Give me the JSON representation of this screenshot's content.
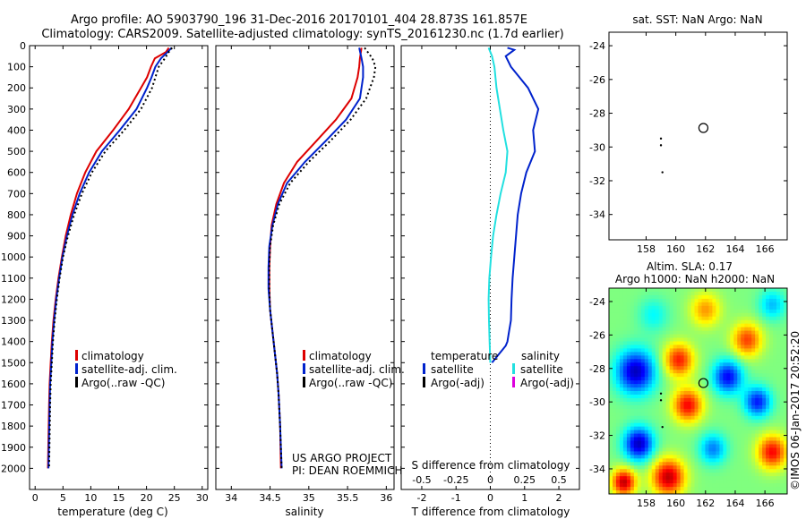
{
  "header": {
    "line1": "Argo profile: AO 5903790_196 31-Dec-2016 20170101_404 28.873S 161.857E",
    "line2": "Climatology: CARS2009. Satellite-adjusted climatology: synTS_20161230.nc (1.7d earlier)"
  },
  "colors": {
    "climatology": "#dd0000",
    "satellite": "#0022cc",
    "argo": "#000000",
    "sat_salinity": "#22e0e0",
    "argo_adj_salinity": "#dd00dd"
  },
  "depth_axis": {
    "lim": [
      0,
      2100
    ],
    "ticks": [
      0,
      100,
      200,
      300,
      400,
      500,
      600,
      700,
      800,
      900,
      1000,
      1100,
      1200,
      1300,
      1400,
      1500,
      1600,
      1700,
      1800,
      1900,
      2000
    ]
  },
  "chart_data": [
    {
      "type": "line",
      "id": "temperature",
      "xlabel": "temperature (deg C)",
      "xlim": [
        -1,
        31
      ],
      "xticks": [
        0,
        5,
        10,
        15,
        20,
        25,
        30
      ],
      "legend": [
        "climatology",
        "satellite-adj. clim.",
        "Argo(..raw -QC)"
      ],
      "series": [
        {
          "name": "climatology",
          "style": "solid",
          "color": "#dd0000",
          "x": [
            24.0,
            23.5,
            21.5,
            20.8,
            20.1,
            19.0,
            16.8,
            14.0,
            11.0,
            9.0,
            7.5,
            6.4,
            5.5,
            4.8,
            4.2,
            3.7,
            3.3,
            3.0,
            2.8,
            2.6,
            2.5,
            2.3
          ],
          "y": [
            10,
            30,
            60,
            100,
            150,
            200,
            300,
            400,
            500,
            600,
            700,
            800,
            900,
            1000,
            1100,
            1200,
            1300,
            1400,
            1500,
            1600,
            1700,
            2000
          ]
        },
        {
          "name": "satellite-adj. clim.",
          "style": "solid",
          "color": "#0022cc",
          "x": [
            24.5,
            23.8,
            22.6,
            21.6,
            20.9,
            20.1,
            18.2,
            15.2,
            12.0,
            9.7,
            8.0,
            6.7,
            5.7,
            4.9,
            4.3,
            3.8,
            3.4,
            3.1,
            2.9,
            2.7,
            2.6,
            2.4
          ],
          "y": [
            10,
            30,
            60,
            100,
            150,
            200,
            300,
            400,
            500,
            600,
            700,
            800,
            900,
            1000,
            1100,
            1200,
            1300,
            1400,
            1500,
            1600,
            1700,
            2000
          ]
        },
        {
          "name": "Argo(..raw -QC)",
          "style": "dotted",
          "color": "#000000",
          "x": [
            24.6,
            24.0,
            23.3,
            22.2,
            21.6,
            21.0,
            19.0,
            16.0,
            12.6,
            10.2,
            8.4,
            7.0,
            5.9,
            5.0,
            4.4,
            3.9,
            3.5,
            3.2,
            3.0,
            2.8,
            2.7,
            2.5
          ],
          "y": [
            10,
            30,
            60,
            100,
            150,
            200,
            300,
            400,
            500,
            600,
            700,
            800,
            900,
            1000,
            1100,
            1200,
            1300,
            1400,
            1500,
            1600,
            1700,
            2000
          ]
        }
      ]
    },
    {
      "type": "line",
      "id": "salinity",
      "xlabel": "salinity",
      "xlim": [
        33.8,
        36.1
      ],
      "xticks": [
        34,
        34.5,
        35,
        35.5,
        36
      ],
      "legend": [
        "climatology",
        "satellite-adj. clim.",
        "Argo(..raw -QC)"
      ],
      "annotations": [
        "US ARGO PROJECT",
        "PI: DEAN ROEMMICH"
      ],
      "series": [
        {
          "name": "climatology",
          "style": "solid",
          "color": "#dd0000",
          "x": [
            35.68,
            35.66,
            35.65,
            35.63,
            35.55,
            35.35,
            35.1,
            34.85,
            34.68,
            34.58,
            34.52,
            34.5,
            34.49,
            34.49,
            34.5,
            34.53,
            34.56,
            34.59,
            34.61,
            34.63,
            34.64
          ],
          "y": [
            10,
            60,
            100,
            150,
            250,
            350,
            450,
            550,
            650,
            750,
            850,
            950,
            1050,
            1150,
            1250,
            1350,
            1450,
            1550,
            1650,
            1800,
            2000
          ]
        },
        {
          "name": "satellite-adj. clim.",
          "style": "solid",
          "color": "#0022cc",
          "x": [
            35.65,
            35.68,
            35.7,
            35.7,
            35.66,
            35.48,
            35.22,
            34.95,
            34.72,
            34.6,
            34.53,
            34.49,
            34.48,
            34.48,
            34.5,
            34.53,
            34.56,
            34.59,
            34.61,
            34.63,
            34.65
          ],
          "y": [
            10,
            60,
            100,
            150,
            250,
            350,
            450,
            550,
            650,
            750,
            850,
            950,
            1050,
            1150,
            1250,
            1350,
            1450,
            1550,
            1650,
            1800,
            2000
          ]
        },
        {
          "name": "Argo(..raw -QC)",
          "style": "dotted",
          "color": "#000000",
          "x": [
            35.72,
            35.82,
            35.86,
            35.84,
            35.74,
            35.54,
            35.28,
            35.0,
            34.76,
            34.62,
            34.54,
            34.5,
            34.49,
            34.49,
            34.5,
            34.53,
            34.56,
            34.59,
            34.61,
            34.63,
            34.65
          ],
          "y": [
            10,
            60,
            100,
            150,
            250,
            350,
            450,
            550,
            650,
            750,
            850,
            950,
            1050,
            1150,
            1250,
            1350,
            1450,
            1550,
            1650,
            1800,
            2000
          ]
        }
      ]
    },
    {
      "type": "line",
      "id": "difference",
      "xlabel": "T difference from climatology",
      "xlabel_top": "S difference from climatology",
      "xlim": [
        -2.6,
        2.6
      ],
      "xticks": [
        -2,
        -1,
        0,
        1,
        2
      ],
      "xticks_s": [
        "-0.5",
        "-0.25",
        "0",
        "0.25",
        "0.5"
      ],
      "xticks_s_pos": [
        -2,
        -1,
        0,
        1,
        2
      ],
      "legend_temperature_title": "temperature",
      "legend_salinity_title": "salinity",
      "legend_temperature": [
        "satellite",
        "Argo(-adj)"
      ],
      "legend_salinity": [
        "satellite",
        "Argo(-adj)"
      ],
      "series": [
        {
          "name": "temperature satellite",
          "style": "solid",
          "color": "#0022cc",
          "x": [
            0.5,
            0.7,
            0.45,
            0.6,
            1.1,
            1.4,
            1.25,
            1.3,
            1.05,
            0.9,
            0.8,
            0.75,
            0.7,
            0.65,
            0.62,
            0.6,
            0.55,
            0.5,
            0.45,
            0.35,
            0.25,
            0.15,
            0.05
          ],
          "y": [
            10,
            20,
            50,
            100,
            200,
            300,
            400,
            500,
            600,
            700,
            800,
            900,
            1000,
            1100,
            1200,
            1300,
            1350,
            1400,
            1420,
            1440,
            1460,
            1480,
            1500
          ]
        },
        {
          "name": "salinity satellite",
          "style": "solid",
          "color": "#22e0e0",
          "x": [
            -0.05,
            0.05,
            0.12,
            0.18,
            0.28,
            0.38,
            0.5,
            0.45,
            0.3,
            0.18,
            0.08,
            0.02,
            -0.03,
            -0.05,
            -0.04,
            -0.02,
            0.0
          ],
          "y": [
            10,
            50,
            100,
            200,
            300,
            400,
            500,
            600,
            700,
            800,
            900,
            1000,
            1100,
            1200,
            1300,
            1400,
            1500
          ]
        }
      ]
    },
    {
      "type": "scatter",
      "id": "sst-map",
      "title": "sat. SST: NaN Argo: NaN",
      "xlim": [
        155.5,
        167.5
      ],
      "ylim": [
        -35.5,
        -23.2
      ],
      "xticks": [
        158,
        160,
        162,
        164,
        166
      ],
      "yticks": [
        -24,
        -26,
        -28,
        -30,
        -32,
        -34
      ],
      "profile_location": [
        161.857,
        -28.873
      ],
      "track_points": [
        [
          159.0,
          -29.5
        ],
        [
          159.0,
          -29.9
        ],
        [
          159.1,
          -31.5
        ]
      ]
    },
    {
      "type": "heatmap",
      "id": "sla-map",
      "title_line1": "Altim. SLA: 0.17",
      "title_line2": "Argo h1000: NaN h2000: NaN",
      "xlim": [
        155.5,
        167.5
      ],
      "ylim": [
        -35.5,
        -23.2
      ],
      "xticks": [
        158,
        160,
        162,
        164,
        166
      ],
      "yticks": [
        -24,
        -26,
        -28,
        -30,
        -32,
        -34
      ],
      "profile_location": [
        161.857,
        -28.873
      ],
      "track_points": [
        [
          159.0,
          -29.5
        ],
        [
          159.0,
          -29.9
        ],
        [
          159.1,
          -31.5
        ]
      ],
      "blobs": [
        {
          "lon": 157.3,
          "lat": -28.2,
          "v": -0.35,
          "r": 1.3
        },
        {
          "lon": 157.5,
          "lat": -32.5,
          "v": -0.35,
          "r": 1.0
        },
        {
          "lon": 160.2,
          "lat": -27.5,
          "v": 0.28,
          "r": 1.0
        },
        {
          "lon": 160.8,
          "lat": -30.2,
          "v": 0.3,
          "r": 1.0
        },
        {
          "lon": 163.5,
          "lat": -28.5,
          "v": -0.3,
          "r": 1.0
        },
        {
          "lon": 165.5,
          "lat": -30.0,
          "v": -0.28,
          "r": 0.9
        },
        {
          "lon": 164.8,
          "lat": -26.3,
          "v": 0.25,
          "r": 1.0
        },
        {
          "lon": 166.5,
          "lat": -33.0,
          "v": 0.3,
          "r": 1.0
        },
        {
          "lon": 159.5,
          "lat": -34.5,
          "v": 0.35,
          "r": 1.1
        },
        {
          "lon": 162.5,
          "lat": -32.8,
          "v": -0.2,
          "r": 0.9
        },
        {
          "lon": 156.5,
          "lat": -34.8,
          "v": 0.35,
          "r": 0.8
        },
        {
          "lon": 162.0,
          "lat": -24.5,
          "v": 0.18,
          "r": 1.0
        },
        {
          "lon": 166.5,
          "lat": -24.2,
          "v": -0.15,
          "r": 0.9
        },
        {
          "lon": 158.5,
          "lat": -24.8,
          "v": -0.1,
          "r": 1.0
        }
      ]
    }
  ],
  "footer": {
    "credit": "©IMOS 06-Jan-2017 20:52:20"
  }
}
